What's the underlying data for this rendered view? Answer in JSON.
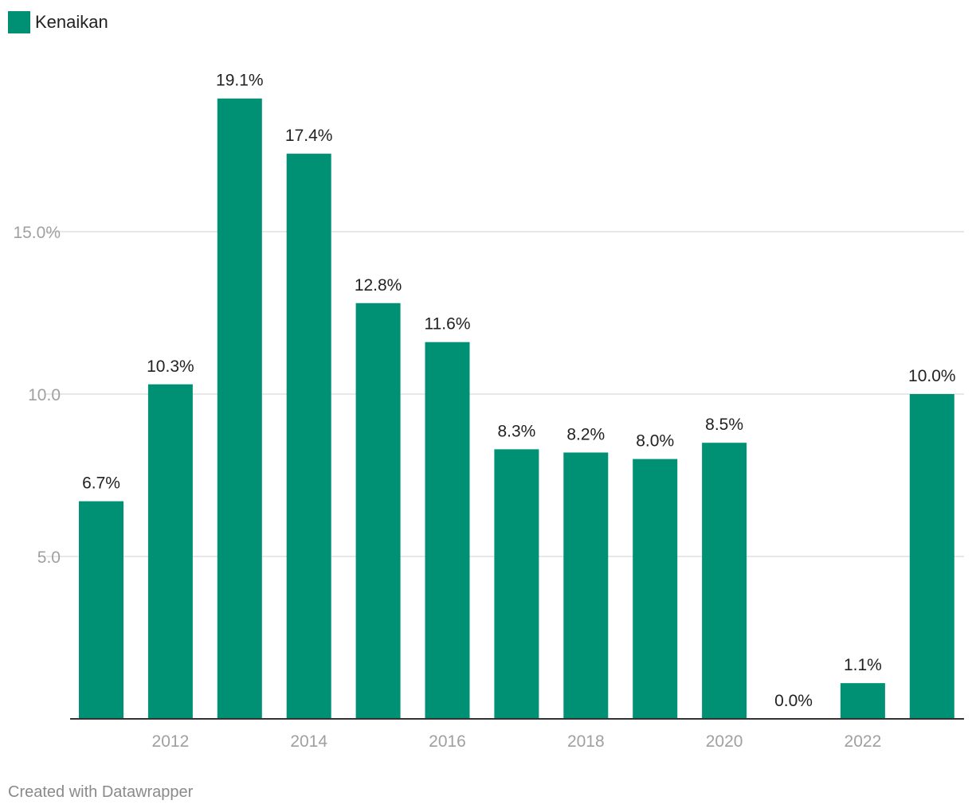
{
  "legend": {
    "label": "Kenaikan"
  },
  "footer": {
    "credit": "Created with Datawrapper"
  },
  "colors": {
    "bar": "#009175",
    "grid": "#e0e0e0",
    "axis_text": "#a0a0a0",
    "label_text": "#222222",
    "baseline": "#333333"
  },
  "chart_data": {
    "type": "bar",
    "categories": [
      "2011",
      "2012",
      "2013",
      "2014",
      "2015",
      "2016",
      "2017",
      "2018",
      "2019",
      "2020",
      "2021",
      "2022",
      "2023"
    ],
    "values": [
      6.7,
      10.3,
      19.1,
      17.4,
      12.8,
      11.6,
      8.3,
      8.2,
      8.0,
      8.5,
      0.0,
      1.1,
      10.0
    ],
    "labels": [
      "6.7%",
      "10.3%",
      "19.1%",
      "17.4%",
      "12.8%",
      "11.6%",
      "8.3%",
      "8.2%",
      "8.0%",
      "8.5%",
      "0.0%",
      "1.1%",
      "10.0%"
    ],
    "x_tick_labels": [
      "2012",
      "2014",
      "2016",
      "2018",
      "2020",
      "2022"
    ],
    "y_ticks": [
      5,
      10,
      15
    ],
    "y_tick_labels": [
      "5.0",
      "10.0",
      "15.0%"
    ],
    "ylim": [
      0,
      21.5
    ],
    "series_name": "Kenaikan",
    "title": "",
    "xlabel": "",
    "ylabel": ""
  }
}
